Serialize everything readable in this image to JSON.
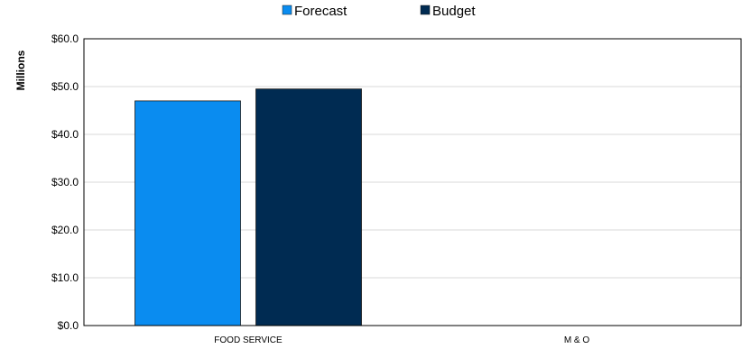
{
  "chart_data": {
    "type": "bar",
    "title": "",
    "xlabel": "",
    "ylabel": "Millions",
    "categories": [
      "FOOD SERVICE",
      "M & O"
    ],
    "series": [
      {
        "name": "Forecast",
        "color": "#0A8CF0",
        "values": [
          47.0,
          0
        ]
      },
      {
        "name": "Budget",
        "color": "#002B52",
        "values": [
          49.5,
          0
        ]
      }
    ],
    "ylim": [
      0,
      60
    ],
    "yticks": [
      "$0.0",
      "$10.0",
      "$20.0",
      "$30.0",
      "$40.0",
      "$50.0",
      "$60.0"
    ],
    "legend_position": "top-center",
    "grid": true
  }
}
